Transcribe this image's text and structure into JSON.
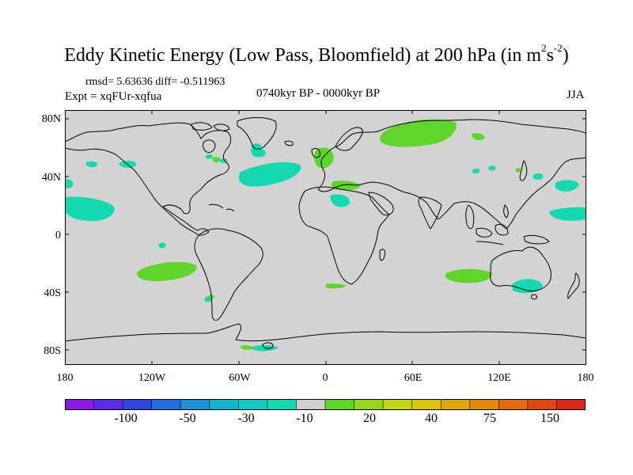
{
  "title": {
    "main": "Eddy Kinetic Energy (Low Pass, Bloomfield) at 200 hPa (in m",
    "sup1": "2",
    "mid": "s",
    "sup2": "-2",
    "close": ")"
  },
  "stats": "rmsd= 5.63636 diff= -0.511963",
  "expt": "Expt = xqFUr-xqfua",
  "period": "0740kyr BP - 0000kyr BP",
  "season": "JJA",
  "axes": {
    "y_labels": [
      "80N",
      "40N",
      "0",
      "40S",
      "80S"
    ],
    "x_labels": [
      "180",
      "120W",
      "60W",
      "0",
      "60E",
      "120E",
      "180"
    ]
  },
  "colorbar": {
    "labels": [
      "-100",
      "-50",
      "-30",
      "-10",
      "20",
      "40",
      "75",
      "150"
    ],
    "colors": [
      "#8a1ae6",
      "#5a2ce8",
      "#3046e0",
      "#1e6fdc",
      "#1f93d6",
      "#17b2d0",
      "#12c9c4",
      "#14d8b0",
      "#cfcfcf",
      "#5fd42a",
      "#95d51d",
      "#c4d313",
      "#d9c30c",
      "#e0a70a",
      "#e28a0b",
      "#e06a0d",
      "#dc4a10",
      "#d52c14"
    ]
  },
  "colors": {
    "background": "#ffffff",
    "land_ocean": "#d3d3d3",
    "negative_anomaly": "#14d8b0",
    "positive_anomaly": "#5fd42a",
    "coast": "#000000"
  }
}
